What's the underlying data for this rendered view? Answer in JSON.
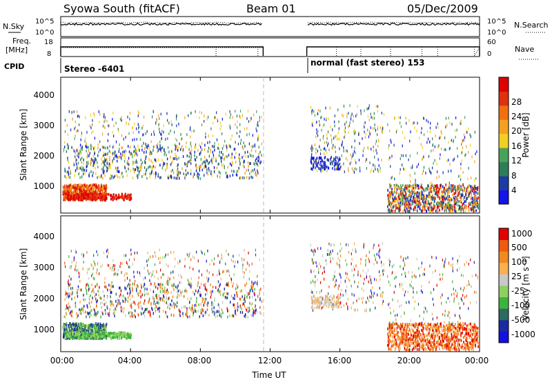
{
  "header": {
    "title": "Syowa South (fitACF)",
    "beam": "Beam 01",
    "date": "05/Dec/2009"
  },
  "strip": {
    "nsky_label": "N.Sky",
    "nsky_ticks": [
      "10^5",
      "10^0"
    ],
    "nsearch_label": "N.Search",
    "nsearch_ticks": [
      "10^5",
      "10^0"
    ],
    "freq_label_1": "Freq.",
    "freq_label_2": "[MHz]",
    "freq_ticks": [
      "18",
      "8"
    ],
    "nave_label": "Nave",
    "nave_ticks": [
      "60",
      "0"
    ],
    "cpid_label": "CPID",
    "cpid_segments": [
      "Stereo -6401",
      "normal (fast stereo) 153"
    ]
  },
  "colors": {
    "power_scale": [
      "#1414e6",
      "#1e3ca0",
      "#2e7d5a",
      "#4aa25a",
      "#f0d020",
      "#f5a020",
      "#f07010",
      "#e03010",
      "#dd0000"
    ],
    "velocity_scale": [
      "#e00000",
      "#f05a10",
      "#f08a20",
      "#f8b050",
      "#c8c8c8",
      "#8ed060",
      "#3cb43c",
      "#2e6a60",
      "#1a2aa0",
      "#1410e0"
    ]
  },
  "chart_data": [
    {
      "type": "heatmap",
      "name": "power",
      "ylabel": "Slant Range [km]",
      "yticks": [
        "1000",
        "2000",
        "3000",
        "4000"
      ],
      "colorbar_label": "Power [dB]",
      "colorbar_ticks": [
        "4",
        "8",
        "12",
        "16",
        "20",
        "24",
        "28"
      ],
      "ylim": [
        180,
        4600
      ],
      "x_range_hours": [
        0,
        24
      ],
      "data_gap_hours": [
        11.6,
        14.1
      ]
    },
    {
      "type": "heatmap",
      "name": "velocity",
      "ylabel": "Slant Range [km]",
      "yticks": [
        "1000",
        "2000",
        "3000",
        "4000"
      ],
      "colorbar_label": "Velocity [m s⁻¹]",
      "colorbar_ticks": [
        "-1000",
        "-500",
        "-100",
        "-25",
        "25",
        "100",
        "500",
        "1000"
      ],
      "ylim": [
        180,
        4600
      ],
      "x_range_hours": [
        0,
        24
      ],
      "data_gap_hours": [
        11.6,
        14.1
      ]
    }
  ],
  "xaxis": {
    "ticks": [
      "00:00",
      "04:00",
      "08:00",
      "12:00",
      "16:00",
      "20:00",
      "00:00"
    ],
    "label": "Time UT"
  }
}
